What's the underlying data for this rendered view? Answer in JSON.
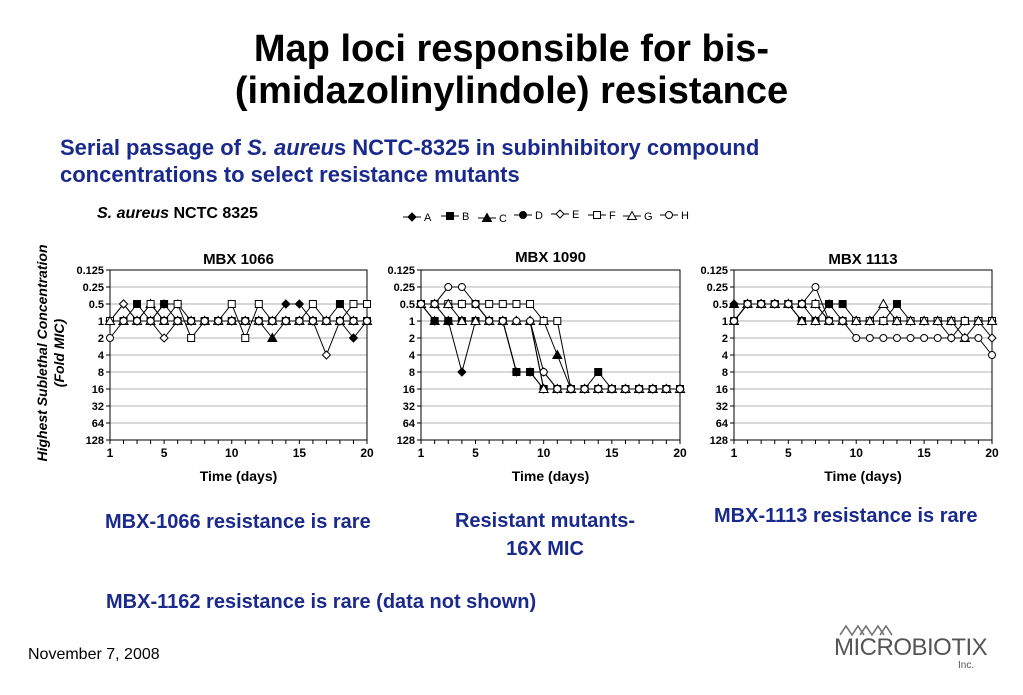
{
  "title_line1": "Map loci responsible for bis-",
  "title_line2": "(imidazolinylindole) resistance",
  "subtitle_pre": "Serial passage of ",
  "subtitle_italic": "S. aureu",
  "subtitle_post": "s NCTC-8325 in subinhibitory compound",
  "subtitle_line2": "concentrations to select resistance mutants",
  "strain_italic": "S. aureus",
  "strain_rest": " NCTC 8325",
  "y_axis_title_line1": "Highest Sublethal Concentration",
  "y_axis_title_line2": "(Fold MIC)",
  "notes": {
    "mbx1066": "MBX-1066 resistance is rare",
    "mbx1090_line1": "Resistant mutants-",
    "mbx1090_line2": "16X MIC",
    "mbx1113": "MBX-1113 resistance is rare",
    "mbx1162": "MBX-1162 resistance is rare (data not shown)"
  },
  "footer_date": "November 7, 2008",
  "logo": {
    "name": "MICROBIOTIX",
    "suffix": "Inc."
  },
  "colors": {
    "accent": "#1a2a8c",
    "series": "#000000"
  },
  "chart_data": [
    {
      "type": "line",
      "title": "MBX 1066",
      "xlabel": "Time (days)",
      "ylabel": "Highest Sublethal Concentration (Fold MIC)",
      "y_scale": "log2, inverted",
      "y_ticks": [
        "0.125",
        "0.25",
        "0.5",
        "1",
        "2",
        "4",
        "8",
        "16",
        "32",
        "64",
        "128"
      ],
      "x_ticks": [
        1,
        5,
        10,
        15,
        20
      ],
      "xlim": [
        1,
        20
      ],
      "ylim": [
        0.125,
        128
      ],
      "grid": true,
      "legend": [
        "A",
        "B",
        "C",
        "D",
        "E",
        "F",
        "G",
        "H"
      ],
      "x": [
        1,
        2,
        3,
        4,
        5,
        6,
        7,
        8,
        9,
        10,
        11,
        12,
        13,
        14,
        15,
        16,
        17,
        18,
        19,
        20
      ],
      "series": [
        {
          "name": "A",
          "values": [
            1,
            0.5,
            1,
            1,
            0.5,
            0.5,
            1,
            1,
            1,
            1,
            1,
            1,
            1,
            0.5,
            0.5,
            1,
            1,
            1,
            2,
            1
          ]
        },
        {
          "name": "B",
          "values": [
            1,
            1,
            0.5,
            1,
            0.5,
            1,
            1,
            1,
            1,
            1,
            1,
            1,
            1,
            1,
            1,
            1,
            1,
            0.5,
            1,
            1
          ]
        },
        {
          "name": "C",
          "values": [
            1,
            1,
            1,
            0.5,
            1,
            1,
            1,
            1,
            1,
            1,
            1,
            1,
            2,
            1,
            1,
            1,
            1,
            1,
            1,
            1
          ]
        },
        {
          "name": "D",
          "values": [
            1,
            1,
            1,
            1,
            1,
            1,
            1,
            1,
            1,
            1,
            1,
            1,
            1,
            1,
            1,
            1,
            1,
            1,
            1,
            1
          ]
        },
        {
          "name": "E",
          "values": [
            1,
            0.5,
            1,
            1,
            2,
            1,
            1,
            1,
            1,
            1,
            1,
            1,
            1,
            1,
            1,
            1,
            4,
            1,
            1,
            1
          ]
        },
        {
          "name": "F",
          "values": [
            1,
            1,
            1,
            0.5,
            1,
            0.5,
            2,
            1,
            1,
            0.5,
            2,
            0.5,
            1,
            1,
            1,
            0.5,
            1,
            1,
            0.5,
            0.5
          ]
        },
        {
          "name": "G",
          "values": [
            1,
            1,
            1,
            1,
            1,
            1,
            1,
            1,
            1,
            1,
            1,
            1,
            1,
            1,
            1,
            1,
            1,
            1,
            1,
            1
          ]
        },
        {
          "name": "H",
          "values": [
            2,
            1,
            1,
            1,
            1,
            1,
            1,
            1,
            1,
            1,
            1,
            1,
            1,
            1,
            1,
            1,
            1,
            1,
            1,
            1
          ]
        }
      ]
    },
    {
      "type": "line",
      "title": "MBX 1090",
      "xlabel": "Time (days)",
      "ylabel": "Highest Sublethal Concentration (Fold MIC)",
      "y_scale": "log2, inverted",
      "y_ticks": [
        "0.125",
        "0.25",
        "0.5",
        "1",
        "2",
        "4",
        "8",
        "16",
        "32",
        "64",
        "128"
      ],
      "x_ticks": [
        1,
        5,
        10,
        15,
        20
      ],
      "xlim": [
        1,
        20
      ],
      "ylim": [
        0.125,
        128
      ],
      "grid": true,
      "legend": [
        "A",
        "B",
        "C",
        "D",
        "E",
        "F",
        "G",
        "H"
      ],
      "x": [
        1,
        2,
        3,
        4,
        5,
        6,
        7,
        8,
        9,
        10,
        11,
        12,
        13,
        14,
        15,
        16,
        17,
        18,
        19,
        20
      ],
      "series": [
        {
          "name": "A",
          "values": [
            0.5,
            1,
            1,
            8,
            1,
            1,
            1,
            8,
            8,
            8,
            16,
            16,
            16,
            16,
            16,
            16,
            16,
            16,
            16,
            16
          ]
        },
        {
          "name": "B",
          "values": [
            0.5,
            1,
            1,
            1,
            1,
            1,
            1,
            8,
            8,
            16,
            16,
            16,
            16,
            8,
            16,
            16,
            16,
            16,
            16,
            16
          ]
        },
        {
          "name": "C",
          "values": [
            0.5,
            1,
            1,
            1,
            1,
            1,
            1,
            1,
            1,
            1,
            4,
            16,
            16,
            16,
            16,
            16,
            16,
            16,
            16,
            16
          ]
        },
        {
          "name": "D",
          "values": [
            0.5,
            0.5,
            1,
            1,
            1,
            1,
            1,
            8,
            8,
            16,
            16,
            16,
            16,
            16,
            16,
            16,
            16,
            16,
            16,
            16
          ]
        },
        {
          "name": "E",
          "values": [
            0.5,
            0.5,
            0.5,
            0.5,
            0.5,
            1,
            1,
            1,
            1,
            16,
            16,
            16,
            16,
            16,
            16,
            16,
            16,
            16,
            16,
            16
          ]
        },
        {
          "name": "F",
          "values": [
            0.5,
            0.5,
            0.5,
            0.5,
            0.5,
            0.5,
            0.5,
            0.5,
            0.5,
            1,
            1,
            16,
            16,
            16,
            16,
            16,
            16,
            16,
            16,
            16
          ]
        },
        {
          "name": "G",
          "values": [
            0.5,
            0.5,
            0.5,
            1,
            1,
            1,
            1,
            1,
            1,
            16,
            16,
            16,
            16,
            16,
            16,
            16,
            16,
            16,
            16,
            16
          ]
        },
        {
          "name": "H",
          "values": [
            0.5,
            0.5,
            0.25,
            0.25,
            0.5,
            1,
            1,
            1,
            1,
            8,
            16,
            16,
            16,
            16,
            16,
            16,
            16,
            16,
            16,
            16
          ]
        }
      ]
    },
    {
      "type": "line",
      "title": "MBX 1113",
      "xlabel": "Time (days)",
      "ylabel": "Highest Sublethal Concentration (Fold MIC)",
      "y_scale": "log2, inverted",
      "y_ticks": [
        "0.125",
        "0.25",
        "0.5",
        "1",
        "2",
        "4",
        "8",
        "16",
        "32",
        "64",
        "128"
      ],
      "x_ticks": [
        1,
        5,
        10,
        15,
        20
      ],
      "xlim": [
        1,
        20
      ],
      "ylim": [
        0.125,
        128
      ],
      "grid": true,
      "legend": [
        "A",
        "B",
        "C",
        "D",
        "E",
        "F",
        "G",
        "H"
      ],
      "x": [
        1,
        2,
        3,
        4,
        5,
        6,
        7,
        8,
        9,
        10,
        11,
        12,
        13,
        14,
        15,
        16,
        17,
        18,
        19,
        20
      ],
      "series": [
        {
          "name": "A",
          "values": [
            0.5,
            0.5,
            0.5,
            0.5,
            0.5,
            0.5,
            0.5,
            0.5,
            1,
            1,
            1,
            1,
            1,
            1,
            1,
            1,
            1,
            1,
            1,
            1
          ]
        },
        {
          "name": "B",
          "values": [
            1,
            0.5,
            0.5,
            0.5,
            0.5,
            1,
            1,
            0.5,
            0.5,
            1,
            1,
            1,
            0.5,
            1,
            1,
            1,
            1,
            1,
            1,
            1
          ]
        },
        {
          "name": "C",
          "values": [
            0.5,
            0.5,
            0.5,
            0.5,
            0.5,
            0.5,
            0.5,
            1,
            1,
            1,
            1,
            1,
            1,
            1,
            1,
            1,
            1,
            1,
            1,
            1
          ]
        },
        {
          "name": "D",
          "values": [
            1,
            0.5,
            0.5,
            0.5,
            0.5,
            0.5,
            1,
            1,
            1,
            1,
            1,
            1,
            1,
            1,
            1,
            1,
            1,
            1,
            1,
            1
          ]
        },
        {
          "name": "E",
          "values": [
            1,
            0.5,
            0.5,
            0.5,
            0.5,
            1,
            1,
            1,
            1,
            1,
            1,
            1,
            1,
            1,
            1,
            1,
            2,
            1,
            1,
            2
          ]
        },
        {
          "name": "F",
          "values": [
            1,
            0.5,
            0.5,
            0.5,
            0.5,
            0.5,
            0.5,
            1,
            1,
            1,
            1,
            1,
            1,
            1,
            1,
            1,
            1,
            1,
            1,
            1
          ]
        },
        {
          "name": "G",
          "values": [
            1,
            0.5,
            0.5,
            0.5,
            0.5,
            1,
            1,
            1,
            1,
            1,
            1,
            0.5,
            1,
            1,
            1,
            1,
            1,
            2,
            1,
            1
          ]
        },
        {
          "name": "H",
          "values": [
            1,
            0.5,
            0.5,
            0.5,
            0.5,
            0.5,
            0.25,
            1,
            1,
            2,
            2,
            2,
            2,
            2,
            2,
            2,
            2,
            2,
            2,
            4
          ]
        }
      ]
    }
  ]
}
